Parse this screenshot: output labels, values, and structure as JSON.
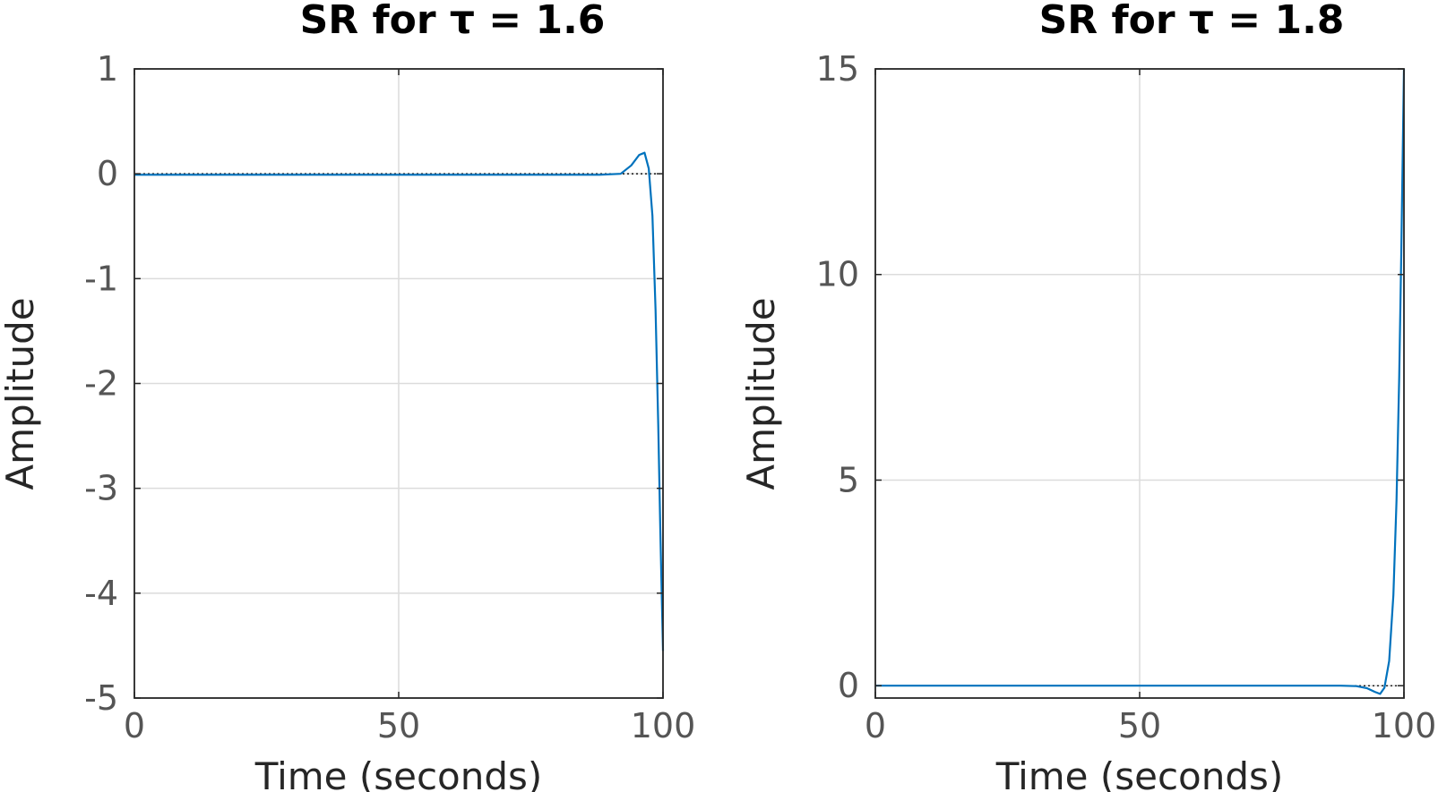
{
  "chart_data": [
    {
      "type": "line",
      "title": "SR for τ = 1.6",
      "xlabel": "Time (seconds)",
      "ylabel": "Amplitude",
      "xlim": [
        0,
        100
      ],
      "ylim": [
        -5,
        1
      ],
      "xticks": [
        0,
        50,
        100
      ],
      "yticks": [
        1,
        0,
        -1,
        -2,
        -3,
        -4,
        -5
      ],
      "grid": true,
      "reference_line_y": 0,
      "series": [
        {
          "color": "#0072BD",
          "x": [
            0,
            20,
            40,
            60,
            80,
            88,
            92,
            94,
            95.5,
            96.5,
            97.3,
            98,
            98.6,
            99.1,
            99.5,
            99.8,
            100
          ],
          "y": [
            -0.01,
            -0.01,
            -0.01,
            -0.01,
            -0.01,
            -0.01,
            0.0,
            0.08,
            0.18,
            0.2,
            0.05,
            -0.4,
            -1.3,
            -2.4,
            -3.4,
            -4.1,
            -4.55
          ]
        }
      ]
    },
    {
      "type": "line",
      "title": "SR for τ = 1.8",
      "xlabel": "Time (seconds)",
      "ylabel": "Amplitude",
      "xlim": [
        0,
        100
      ],
      "ylim": [
        -0.3,
        15
      ],
      "xticks": [
        0,
        50,
        100
      ],
      "yticks": [
        15,
        10,
        5,
        0
      ],
      "grid": true,
      "reference_line_y": 0,
      "series": [
        {
          "color": "#0072BD",
          "x": [
            0,
            20,
            40,
            60,
            80,
            88,
            91,
            93,
            94.5,
            95.5,
            96.3,
            97.2,
            98,
            98.6,
            99.1,
            99.5,
            99.8,
            100
          ],
          "y": [
            0.0,
            0.0,
            0.0,
            0.0,
            0.0,
            0.0,
            -0.01,
            -0.06,
            -0.15,
            -0.2,
            -0.05,
            0.6,
            2.2,
            4.5,
            7.5,
            10.5,
            13.2,
            15
          ]
        }
      ]
    }
  ]
}
